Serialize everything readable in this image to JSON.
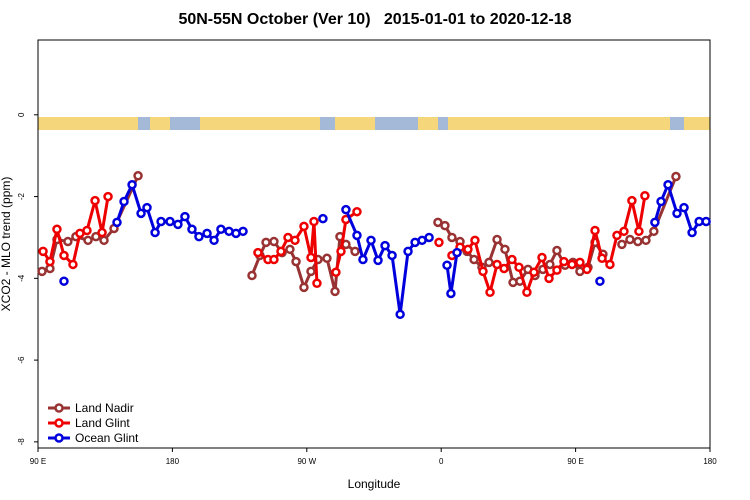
{
  "chart_data": {
    "type": "line",
    "title": "50N-55N October (Ver 10)   2015-01-01 to 2020-12-18",
    "x_label": "Longitude",
    "y_label": "XCO2 - MLO trend (ppm)",
    "xlim": [
      90,
      540
    ],
    "xticks": [
      {
        "value": 90,
        "label": "90 E"
      },
      180,
      {
        "value": 270,
        "label": "90 W"
      },
      {
        "value": 360,
        "label": "0"
      },
      {
        "value": 450,
        "label": "90 E"
      },
      {
        "value": 540,
        "label": "180"
      }
    ],
    "ylim": [
      -8.15,
      1.83
    ],
    "yticks": [
      0,
      -2,
      -4,
      -6,
      -8
    ],
    "grid": false,
    "legend": "bottom-left",
    "series": [
      {
        "name": "Land Nadir",
        "color": "#993333",
        "x": [
          92.7,
          98,
          102.7,
          110,
          115.4,
          123.5,
          128.8,
          134.2,
          140.9,
          157,
          null,
          233.3,
          238.6,
          242.7,
          248,
          253.4,
          258.7,
          262.8,
          268.1,
          272.8,
          277.5,
          283.5,
          288.9,
          292.2,
          296.2,
          302.3,
          null,
          357.8,
          362.5,
          367.2,
          372.6,
          377.3,
          382,
          387.3,
          392,
          397.4,
          402.7,
          408.1,
          412.7,
          418.1,
          422.8,
          428.1,
          432.8,
          437.5,
          442.9,
          448.2,
          452.9,
          458.3,
          463,
          468.3,
          null,
          481,
          486.4,
          491.7,
          497.1,
          502.4,
          517.2
        ],
        "values": [
          -3.83,
          -3.76,
          -3.05,
          -3.1,
          -2.98,
          -3.07,
          -2.98,
          -3.07,
          -2.78,
          -1.49,
          null,
          -3.93,
          -3.44,
          -3.12,
          -3.1,
          -3.37,
          -3.29,
          -3.59,
          -4.22,
          -3.83,
          -3.54,
          -3.51,
          -4.32,
          -2.98,
          -3.17,
          -3.34,
          null,
          -2.63,
          -2.71,
          -3.0,
          -3.1,
          -3.34,
          -3.54,
          -3.73,
          -3.61,
          -3.05,
          -3.29,
          -4.1,
          -4.07,
          -3.78,
          -3.93,
          -3.78,
          -3.66,
          -3.32,
          -3.68,
          -3.61,
          -3.83,
          -3.73,
          -3.12,
          -3.41,
          null,
          -3.17,
          -3.05,
          -3.1,
          -3.07,
          -2.85,
          -1.51
        ]
      },
      {
        "name": "Land Glint",
        "color": "#ee0000",
        "x": [
          93.4,
          98,
          102.7,
          107.4,
          113.4,
          118.1,
          122.8,
          128.2,
          132.9,
          136.9,
          null,
          237.3,
          244,
          248,
          252.7,
          257.4,
          262.1,
          268.1,
          272.8,
          274.8,
          276.8,
          null,
          289.5,
          292.9,
          296.2,
          303.6,
          null,
          358.5,
          null,
          367.2,
          372.6,
          377.9,
          382.6,
          388,
          392.7,
          397.4,
          402.1,
          407.4,
          412.1,
          417.4,
          422.1,
          427.5,
          432.2,
          437.5,
          442.2,
          447.6,
          452.9,
          457.6,
          463,
          467.7,
          473,
          477.7,
          482.4,
          487.7,
          492.4,
          496.4
        ],
        "values": [
          -3.34,
          -3.59,
          -2.8,
          -3.44,
          -3.66,
          -2.9,
          -2.83,
          -2.1,
          -2.88,
          -2.0,
          null,
          -3.37,
          -3.54,
          -3.54,
          -3.34,
          -3.0,
          -3.07,
          -2.73,
          -3.49,
          -2.61,
          -4.12,
          null,
          -3.85,
          -3.34,
          -2.56,
          -2.37,
          null,
          -3.12,
          null,
          -3.44,
          -3.24,
          -3.29,
          -3.07,
          -3.83,
          -4.34,
          -3.66,
          -3.76,
          -3.54,
          -3.73,
          -4.34,
          -3.85,
          -3.49,
          -4.0,
          -3.8,
          -3.59,
          -3.66,
          -3.61,
          -3.78,
          -2.83,
          -3.51,
          -3.66,
          -2.95,
          -2.85,
          -2.1,
          -2.85,
          -1.98
        ]
      },
      {
        "name": "Ocean Glint",
        "color": "#0000dd",
        "x": [
          107.4,
          null,
          142.9,
          147.6,
          153,
          159,
          163,
          168.4,
          172.4,
          178.4,
          183.7,
          188.4,
          193.1,
          197.8,
          203.2,
          207.9,
          212.5,
          217.9,
          222.6,
          227.3,
          null,
          280.8,
          null,
          296.2,
          303.6,
          307.6,
          313,
          317.7,
          322.4,
          327.1,
          332.5,
          337.8,
          342.5,
          347.2,
          351.9,
          null,
          363.9,
          366.5,
          370.6,
          null,
          466.3,
          null,
          503.1,
          507.2,
          511.9,
          517.9,
          522.6,
          528,
          532.7,
          537.4
        ],
        "values": [
          -4.07,
          null,
          -2.63,
          -2.12,
          -1.71,
          -2.41,
          -2.27,
          -2.88,
          -2.61,
          -2.61,
          -2.68,
          -2.49,
          -2.8,
          -2.98,
          -2.9,
          -3.07,
          -2.8,
          -2.85,
          -2.9,
          -2.85,
          null,
          -2.54,
          null,
          -2.32,
          -2.95,
          -3.54,
          -3.07,
          -3.56,
          -3.2,
          -3.44,
          -4.88,
          -3.34,
          -3.12,
          -3.07,
          -3.0,
          null,
          -3.68,
          -4.37,
          -3.37,
          null,
          -4.07,
          null,
          -2.63,
          -2.12,
          -1.71,
          -2.41,
          -2.27,
          -2.88,
          -2.61,
          -2.61
        ]
      }
    ]
  }
}
